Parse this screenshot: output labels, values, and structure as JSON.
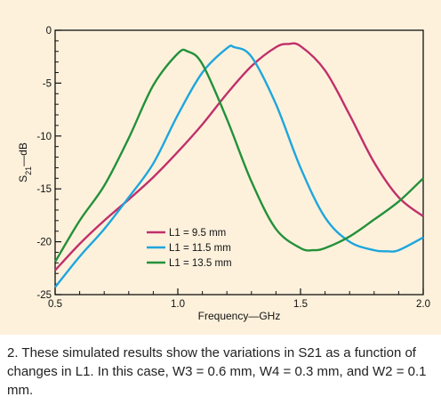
{
  "chart_data": {
    "type": "line",
    "xlabel": "Frequency—GHz",
    "ylabel_main": "S",
    "ylabel_sub": "21",
    "ylabel_tail": "—dB",
    "xlim": [
      0.5,
      2.0
    ],
    "ylim": [
      -25,
      0
    ],
    "x_ticks": [
      0.5,
      1.0,
      1.5,
      2.0
    ],
    "x_tick_labels": [
      "0.5",
      "1.0",
      "1.5",
      "2.0"
    ],
    "y_ticks": [
      0,
      -5,
      -10,
      -15,
      -20,
      -25
    ],
    "y_tick_labels": [
      "0",
      "-5",
      "-10",
      "-15",
      "-20",
      "-25"
    ],
    "grid": false,
    "legend_position": "center",
    "series": [
      {
        "name": "L1 = 9.5 mm",
        "color": "#c0306a",
        "points": [
          [
            0.5,
            -22.7
          ],
          [
            0.6,
            -20.2
          ],
          [
            0.7,
            -18.0
          ],
          [
            0.8,
            -16.0
          ],
          [
            0.9,
            -13.9
          ],
          [
            1.0,
            -11.5
          ],
          [
            1.1,
            -8.9
          ],
          [
            1.2,
            -6.0
          ],
          [
            1.3,
            -3.4
          ],
          [
            1.4,
            -1.6
          ],
          [
            1.45,
            -1.3
          ],
          [
            1.5,
            -1.5
          ],
          [
            1.6,
            -3.8
          ],
          [
            1.7,
            -8.0
          ],
          [
            1.8,
            -12.5
          ],
          [
            1.9,
            -15.8
          ],
          [
            2.0,
            -17.6
          ]
        ]
      },
      {
        "name": "L1 = 11.5 mm",
        "color": "#1ea6dc",
        "points": [
          [
            0.5,
            -24.3
          ],
          [
            0.6,
            -21.4
          ],
          [
            0.7,
            -18.8
          ],
          [
            0.8,
            -15.8
          ],
          [
            0.9,
            -12.6
          ],
          [
            1.0,
            -8.0
          ],
          [
            1.1,
            -4.0
          ],
          [
            1.2,
            -1.7
          ],
          [
            1.23,
            -1.6
          ],
          [
            1.3,
            -2.5
          ],
          [
            1.4,
            -7.0
          ],
          [
            1.5,
            -13.0
          ],
          [
            1.6,
            -17.7
          ],
          [
            1.7,
            -20.0
          ],
          [
            1.8,
            -20.8
          ],
          [
            1.85,
            -20.9
          ],
          [
            1.9,
            -20.8
          ],
          [
            2.0,
            -19.6
          ]
        ]
      },
      {
        "name": "L1 = 13.5 mm",
        "color": "#23913a",
        "points": [
          [
            0.5,
            -21.9
          ],
          [
            0.6,
            -18.0
          ],
          [
            0.7,
            -14.7
          ],
          [
            0.8,
            -10.2
          ],
          [
            0.9,
            -5.2
          ],
          [
            1.0,
            -2.2
          ],
          [
            1.04,
            -2.0
          ],
          [
            1.1,
            -3.2
          ],
          [
            1.2,
            -8.4
          ],
          [
            1.3,
            -14.3
          ],
          [
            1.4,
            -18.8
          ],
          [
            1.5,
            -20.6
          ],
          [
            1.55,
            -20.8
          ],
          [
            1.6,
            -20.6
          ],
          [
            1.7,
            -19.5
          ],
          [
            1.8,
            -17.9
          ],
          [
            1.9,
            -16.2
          ],
          [
            2.0,
            -14.0
          ]
        ]
      }
    ]
  },
  "caption": "2. These simulated results show the variations in S21 as a function of changes in L1. In this case, W3 = 0.6 mm, W4 = 0.3 mm, and W2 = 0.1 mm.",
  "colors": {
    "background": "#fdf1dc",
    "axis": "#111111"
  }
}
